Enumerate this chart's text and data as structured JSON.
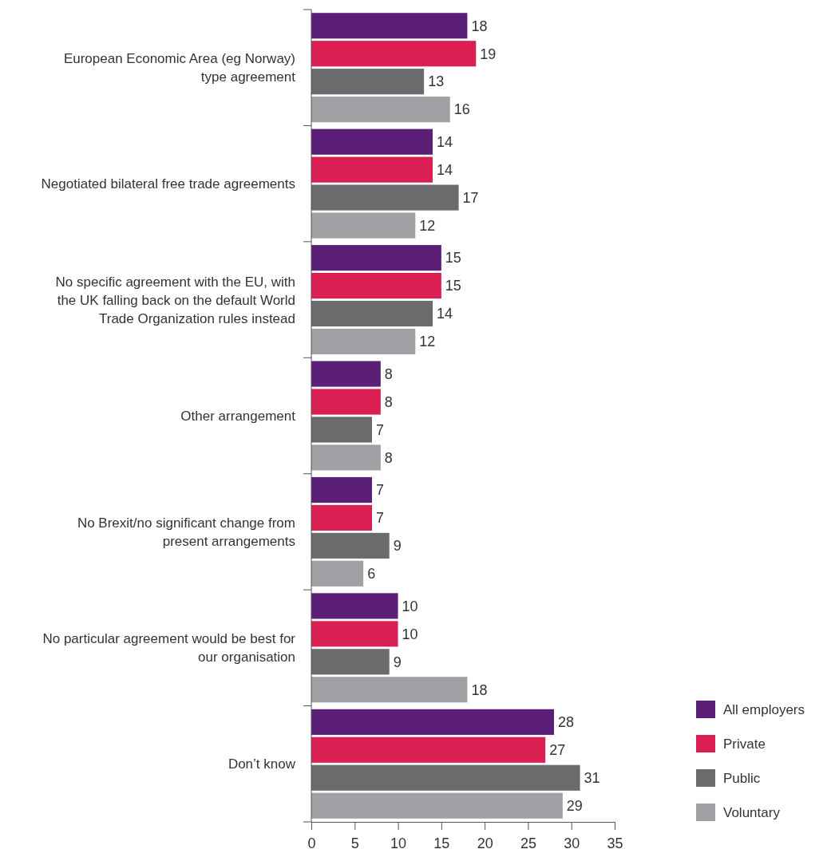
{
  "chart_data": {
    "type": "bar",
    "orientation": "horizontal",
    "categories": [
      "European Economic Area (eg Norway) type agreement",
      "Negotiated bilateral free trade agreements",
      "No specific agreement with the EU, with the UK falling back on the default World Trade Organization rules instead",
      "Other arrangement",
      "No Brexit/no significant change from present arrangements",
      "No particular agreement would be best for our organisation",
      "Don’t know"
    ],
    "series": [
      {
        "name": "All employers",
        "color": "#5c1f78",
        "values": [
          18,
          14,
          15,
          8,
          7,
          10,
          28
        ]
      },
      {
        "name": "Private",
        "color": "#dc1f53",
        "values": [
          19,
          14,
          15,
          8,
          7,
          10,
          27
        ]
      },
      {
        "name": "Public",
        "color": "#6b6b6d",
        "values": [
          13,
          17,
          14,
          7,
          9,
          9,
          31
        ]
      },
      {
        "name": "Voluntary",
        "color": "#a1a1a5",
        "values": [
          16,
          12,
          12,
          8,
          6,
          18,
          29
        ]
      }
    ],
    "xlim": [
      0,
      35
    ],
    "xticks": [
      0,
      5,
      10,
      15,
      20,
      25,
      30,
      35
    ],
    "data_labels": true,
    "legend": "bottom right",
    "grid": false
  }
}
